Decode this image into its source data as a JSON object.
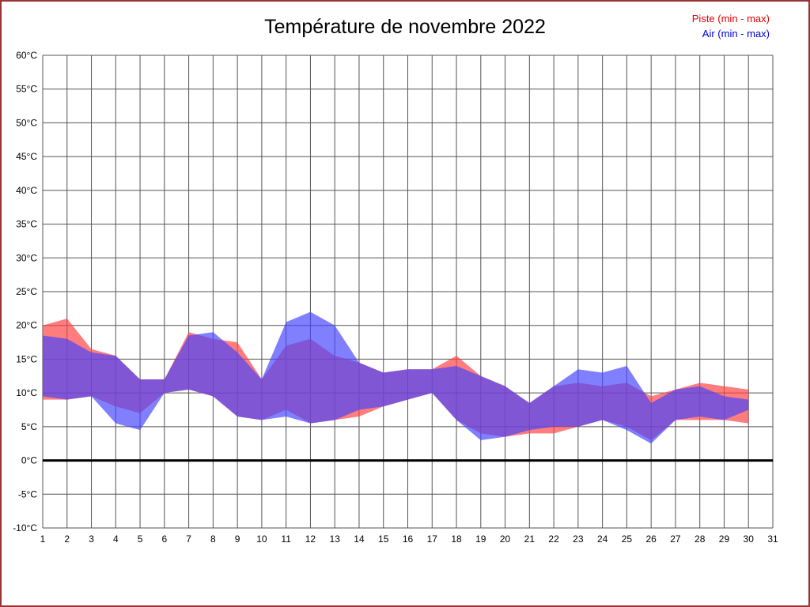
{
  "title": "Température de novembre 2022",
  "legend": [
    {
      "label": "Piste (min - max)",
      "color": "#e00000"
    },
    {
      "label": "Air (min - max)",
      "color": "#0000dd"
    }
  ],
  "colors": {
    "piste_band": "#ff4040",
    "air_band": "#4444ff",
    "zero_line": "#000000",
    "grid": "#555555",
    "frame_border": "#993333"
  },
  "chart_data": {
    "type": "area",
    "title": "Température de novembre 2022",
    "unit": "°C",
    "grid": true,
    "legend_position": "top-right",
    "xlim": [
      1,
      31
    ],
    "ylim": [
      -10,
      60
    ],
    "x": [
      1,
      2,
      3,
      4,
      5,
      6,
      7,
      8,
      9,
      10,
      11,
      12,
      13,
      14,
      15,
      16,
      17,
      18,
      19,
      20,
      21,
      22,
      23,
      24,
      25,
      26,
      27,
      28,
      29,
      30
    ],
    "x_tick_labels": [
      "1",
      "2",
      "3",
      "4",
      "5",
      "6",
      "7",
      "8",
      "9",
      "10",
      "11",
      "12",
      "13",
      "14",
      "15",
      "16",
      "17",
      "18",
      "19",
      "20",
      "21",
      "22",
      "23",
      "24",
      "25",
      "26",
      "27",
      "28",
      "29",
      "30",
      "31"
    ],
    "x_ticks": [
      1,
      2,
      3,
      4,
      5,
      6,
      7,
      8,
      9,
      10,
      11,
      12,
      13,
      14,
      15,
      16,
      17,
      18,
      19,
      20,
      21,
      22,
      23,
      24,
      25,
      26,
      27,
      28,
      29,
      30,
      31
    ],
    "y_ticks": [
      -10,
      -5,
      0,
      5,
      10,
      15,
      20,
      25,
      30,
      35,
      40,
      45,
      50,
      55,
      60
    ],
    "y_tick_labels": [
      "-10°C",
      "-5°C",
      "0°C",
      "5°C",
      "10°C",
      "15°C",
      "20°C",
      "25°C",
      "30°C",
      "35°C",
      "40°C",
      "45°C",
      "50°C",
      "55°C",
      "60°C"
    ],
    "zero_line": 0,
    "series": [
      {
        "name": "Piste (min - max)",
        "color": "#ff4040",
        "min": [
          9,
          9,
          9.5,
          8,
          7,
          10,
          10.5,
          9.5,
          6.5,
          6,
          7.5,
          5.5,
          6,
          6.5,
          8,
          9,
          10,
          6,
          4,
          3.5,
          4,
          4,
          5,
          6,
          5,
          3,
          6,
          6,
          6,
          5.5
        ],
        "max": [
          20,
          21,
          16.5,
          15.5,
          12,
          12,
          19,
          18,
          17.5,
          12,
          17,
          18,
          15.5,
          14.5,
          13,
          13.5,
          13.5,
          15.5,
          12.5,
          11,
          8.5,
          11,
          11.5,
          11,
          11.5,
          9.5,
          10.5,
          11.5,
          11,
          10.5
        ]
      },
      {
        "name": "Air (min - max)",
        "color": "#4444ff",
        "min": [
          9.5,
          9,
          9.5,
          5.5,
          4.5,
          10,
          10.5,
          9.5,
          6.5,
          6,
          6.5,
          5.5,
          6,
          7.5,
          8,
          9,
          10,
          6,
          3,
          3.5,
          4.5,
          5,
          5,
          6,
          4.5,
          2.5,
          6,
          6.5,
          6,
          7.5
        ],
        "max": [
          18.5,
          18,
          16,
          15.5,
          12,
          12,
          18.5,
          19,
          16,
          12,
          20.5,
          22,
          20,
          14.5,
          13,
          13.5,
          13.5,
          14,
          12.5,
          11,
          8.5,
          11,
          13.5,
          13,
          14,
          8.5,
          10.5,
          11,
          9.5,
          9
        ]
      }
    ]
  }
}
